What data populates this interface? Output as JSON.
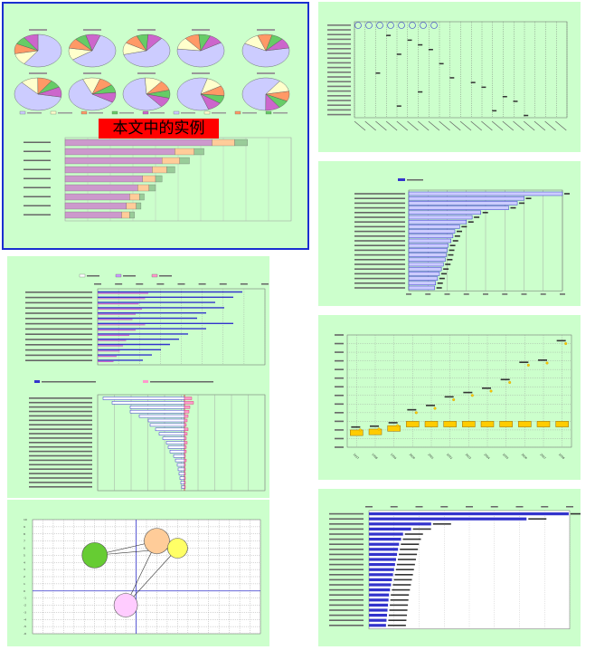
{
  "page": {
    "highlight_label": "本文中的实例"
  },
  "colors": {
    "panel_bg": "#ccffcc",
    "frame_blue": "#1a2fd0",
    "bar_blue": "#3333cc",
    "bar_yellow": "#ffcc00",
    "grid_blue": "#6666cc"
  },
  "panels": {
    "top_left_pies": {
      "title": "",
      "note_lines": [
        "",
        "",
        ""
      ]
    },
    "top_right_matrix": {
      "title": "",
      "subtitle": "",
      "footer": ""
    },
    "ranking_bars": {
      "title": "",
      "subtitle": "",
      "legend": ""
    },
    "left_grouped": {
      "title": "",
      "subtitle": ""
    },
    "left_bidirectional": {
      "title": "",
      "legend_left": "",
      "legend_right": ""
    },
    "yearly_bars": {
      "title": "",
      "footer": ""
    },
    "bubble_scatter": {
      "title": "",
      "ylabel": "",
      "xlabel": ""
    },
    "group_bars": {
      "title": "",
      "subtitle": "",
      "footer": ""
    }
  },
  "chart_data": [
    {
      "type": "pie",
      "title": "",
      "values": [
        60,
        12,
        10,
        8,
        10
      ],
      "colors": [
        "#ccccff",
        "#ffffcc",
        "#ff9966",
        "#66cc66",
        "#cc66cc"
      ]
    },
    {
      "type": "bar",
      "title": "",
      "categories": [
        "",
        "",
        "",
        "",
        "",
        "",
        "",
        "",
        ""
      ],
      "series": [
        {
          "name": "",
          "values": [
            91,
            68,
            60,
            54,
            48,
            45,
            40,
            38,
            35
          ]
        },
        {
          "name": "",
          "values": [
            14,
            12,
            11,
            9,
            8,
            7,
            6,
            6,
            5
          ]
        },
        {
          "name": "",
          "values": [
            8,
            6,
            6,
            5,
            4,
            4,
            3,
            3,
            3
          ]
        }
      ],
      "xlim": [
        0,
        140
      ]
    },
    {
      "type": "bar",
      "title": "",
      "categories": [
        "",
        "",
        "",
        "",
        "",
        "",
        "",
        "",
        "",
        "",
        "",
        "",
        "",
        "",
        "",
        "",
        "",
        "",
        "",
        "",
        ""
      ],
      "values": [
        160,
        120,
        113,
        104,
        75,
        66,
        60,
        53,
        48,
        46,
        44,
        41,
        40,
        39,
        38,
        36,
        34,
        32,
        30,
        28,
        27
      ],
      "xlim": [
        0,
        160
      ]
    },
    {
      "type": "bar",
      "title": "",
      "categories": [
        "1997",
        "1998",
        "1999",
        "2000",
        "2001",
        "2002",
        "2003",
        "2004",
        "2005",
        "2006",
        "2007",
        "2008"
      ],
      "values": [
        400,
        420,
        500,
        800,
        900,
        1100,
        1200,
        1300,
        1500,
        1900,
        1950,
        2400
      ],
      "ylim": [
        0,
        2600
      ]
    },
    {
      "type": "scatter",
      "title": "",
      "points": [
        {
          "x": 1,
          "y": 5,
          "r": 14,
          "color": "#66cc33"
        },
        {
          "x": 4,
          "y": 7,
          "r": 14,
          "color": "#ffcc99"
        },
        {
          "x": 2.5,
          "y": -2,
          "r": 13,
          "color": "#ffccff"
        },
        {
          "x": 5,
          "y": 6,
          "r": 11,
          "color": "#ffff66"
        }
      ],
      "xlim": [
        -2,
        9
      ],
      "ylim": [
        -6,
        10
      ]
    },
    {
      "type": "bar",
      "title": "",
      "categories": [
        "",
        "",
        "",
        "",
        "",
        "",
        "",
        "",
        "",
        "",
        "",
        "",
        "",
        "",
        "",
        "",
        "",
        "",
        "",
        "",
        "",
        "",
        ""
      ],
      "values": [
        1990,
        1570,
        620,
        420,
        340,
        320,
        300,
        290,
        280,
        270,
        260,
        250,
        240,
        230,
        220,
        210,
        200,
        195,
        190,
        185,
        180,
        175,
        170
      ],
      "xlim": [
        0,
        2000
      ]
    }
  ]
}
